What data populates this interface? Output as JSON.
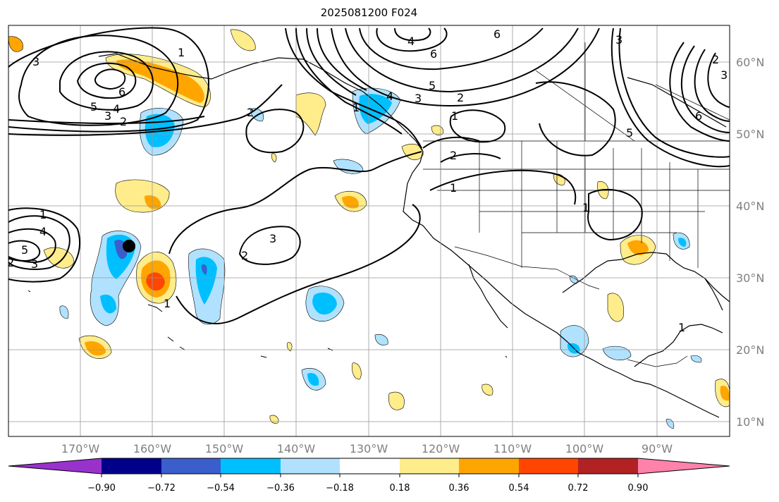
{
  "title": "2025081200 F024",
  "lon_labels": [
    "170°W",
    "160°W",
    "150°W",
    "140°W",
    "130°W",
    "120°W",
    "110°W",
    "100°W",
    "90°W"
  ],
  "lat_labels": [
    "60°N",
    "50°N",
    "40°N",
    "30°N",
    "20°N",
    "10°N"
  ],
  "colorbar": {
    "colors": [
      "#9932cc",
      "#00008b",
      "#3a5fcd",
      "#00bfff",
      "#b0e2ff",
      "#ffffff",
      "#ffec8b",
      "#ffa500",
      "#ff4500",
      "#b22222",
      "#ff82ab"
    ],
    "tick_labels": [
      "−0.90",
      "−0.72",
      "−0.54",
      "−0.36",
      "−0.18",
      "0.18",
      "0.36",
      "0.54",
      "0.72",
      "0.90"
    ]
  },
  "contour_labels": [
    "3",
    "6",
    "5",
    "4",
    "3",
    "2",
    "1",
    "4",
    "6",
    "6",
    "5",
    "3",
    "2",
    "1",
    "2",
    "2",
    "1",
    "1",
    "2",
    "3",
    "1",
    "4",
    "3",
    "5",
    "6",
    "2",
    "3",
    "1",
    "1",
    "4",
    "5",
    "3",
    "2",
    "1"
  ],
  "marker": "black dot near 164°W 34°N"
}
